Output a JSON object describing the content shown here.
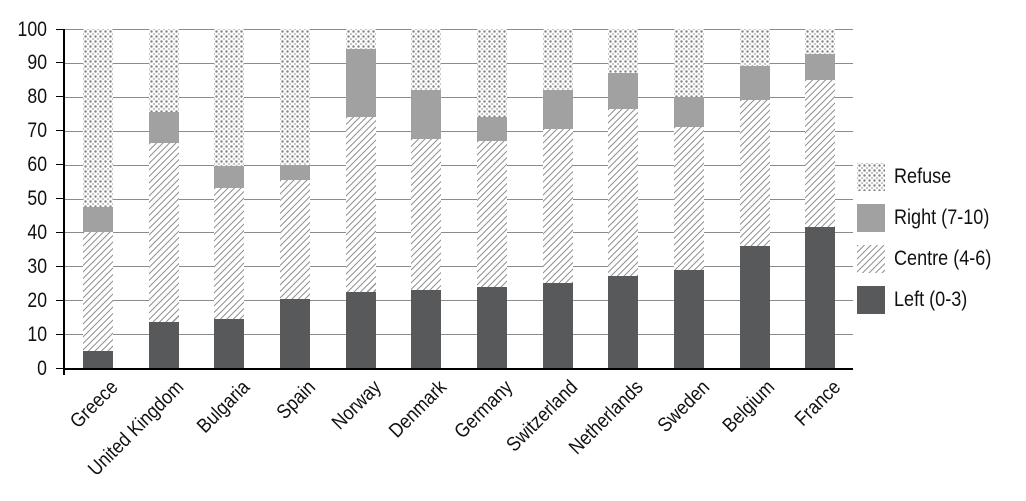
{
  "chart_data": {
    "type": "bar",
    "variant": "stacked-vertical",
    "title": "",
    "xlabel": "",
    "ylabel": "",
    "ylim": [
      0,
      100
    ],
    "yticks": [
      0,
      10,
      20,
      30,
      40,
      50,
      60,
      70,
      80,
      90,
      100
    ],
    "grid": "horizontal",
    "legend_position": "right",
    "categories": [
      "Greece",
      "United Kingdom",
      "Bulgaria",
      "Spain",
      "Norway",
      "Denmark",
      "Germany",
      "Switzerland",
      "Netherlands",
      "Sweden",
      "Belgium",
      "France"
    ],
    "series": [
      {
        "name": "Left (0-3)",
        "style": "left",
        "values": [
          5,
          13.5,
          14.5,
          20.5,
          22.5,
          23,
          24,
          25,
          27,
          29,
          36,
          41.5
        ]
      },
      {
        "name": "Centre (4-6)",
        "style": "centre",
        "values": [
          35,
          53,
          38.5,
          35,
          51.5,
          44.5,
          43,
          45.5,
          49.5,
          42,
          43,
          43.5
        ]
      },
      {
        "name": "Right (7-10)",
        "style": "right",
        "values": [
          7.5,
          9,
          6.5,
          4.5,
          20,
          14.5,
          7,
          11.5,
          10.5,
          9,
          10,
          7.5
        ]
      },
      {
        "name": "Refuse",
        "style": "refuse",
        "values": [
          52.5,
          24.5,
          40.5,
          40,
          6,
          18,
          26,
          18,
          13,
          20,
          11,
          7.5
        ]
      }
    ]
  },
  "legend": {
    "items": [
      {
        "label": "Refuse",
        "style": "refuse"
      },
      {
        "label": "Right (7-10)",
        "style": "right"
      },
      {
        "label": "Centre (4-6)",
        "style": "centre"
      },
      {
        "label": "Left (0-3)",
        "style": "left"
      }
    ]
  },
  "colors": {
    "left_fill": "#58595b",
    "right_fill": "#a1a1a1",
    "hatch_line": "#959595",
    "refuse_dot_dark": "#838383",
    "refuse_dot_light": "#c8c8c8",
    "gridline": "#8b8b8b",
    "axis": "#000000",
    "background": "#ffffff"
  }
}
